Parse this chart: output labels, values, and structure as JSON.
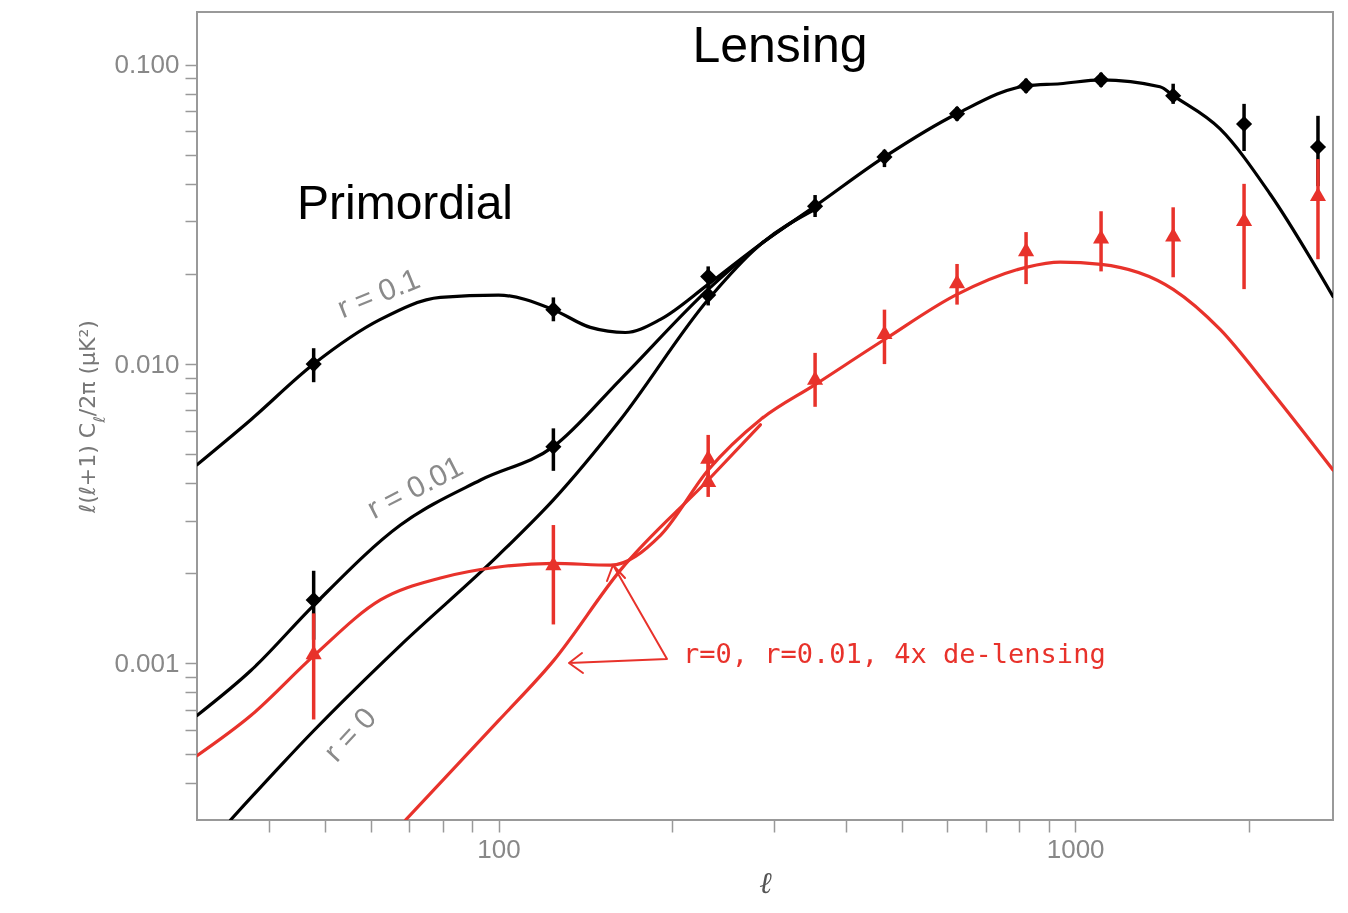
{
  "chart_data": {
    "type": "line",
    "xlabel": "ℓ",
    "ylabel": "ℓ(ℓ+1) C$_{ℓ}$/2π  (μK²)",
    "log": "xy",
    "grid": false,
    "xlim": [
      30,
      2800
    ],
    "ylim": [
      0.0003,
      0.15
    ],
    "xticks": [
      {
        "value": 40,
        "label": null
      },
      {
        "value": 50,
        "label": null
      },
      {
        "value": 60,
        "label": null
      },
      {
        "value": 70,
        "label": null
      },
      {
        "value": 80,
        "label": null
      },
      {
        "value": 90,
        "label": null
      },
      100,
      {
        "value": 200,
        "label": null
      },
      {
        "value": 300,
        "label": null
      },
      {
        "value": 400,
        "label": null
      },
      {
        "value": 500,
        "label": null
      },
      {
        "value": 600,
        "label": null
      },
      {
        "value": 700,
        "label": null
      },
      {
        "value": 800,
        "label": null
      },
      {
        "value": 900,
        "label": null
      },
      1000,
      {
        "value": 2000,
        "label": null
      }
    ],
    "yticks": [
      {
        "value": 0.0004,
        "label": null
      },
      {
        "value": 0.0005,
        "label": null
      },
      {
        "value": 0.0006,
        "label": null
      },
      {
        "value": 0.0007,
        "label": null
      },
      {
        "value": 0.0008,
        "label": null
      },
      {
        "value": 0.0009,
        "label": null
      },
      0.001,
      {
        "value": 0.002,
        "label": null
      },
      {
        "value": 0.003,
        "label": null
      },
      {
        "value": 0.004,
        "label": null
      },
      {
        "value": 0.005,
        "label": null
      },
      {
        "value": 0.006,
        "label": null
      },
      {
        "value": 0.007,
        "label": null
      },
      {
        "value": 0.008,
        "label": null
      },
      {
        "value": 0.009,
        "label": null
      },
      {
        "value": 0.01,
        "label": "0.010"
      },
      {
        "value": 0.02,
        "label": null
      },
      {
        "value": 0.03,
        "label": null
      },
      {
        "value": 0.04,
        "label": null
      },
      {
        "value": 0.05,
        "label": null
      },
      {
        "value": 0.06,
        "label": null
      },
      {
        "value": 0.07,
        "label": null
      },
      {
        "value": 0.08,
        "label": null
      },
      {
        "value": 0.09,
        "label": null
      },
      {
        "value": 0.1,
        "label": "0.100"
      }
    ],
    "series": [
      {
        "name": "r = 0.1",
        "color": "#000000",
        "marker": "none",
        "x": [
          30,
          37.2,
          47.8,
          62.4,
          79.3,
          100,
          124.5,
          144.3,
          166,
          190.9,
          231,
          284.5,
          354,
          467,
          624,
          822,
          942,
          1109,
          1403,
          1479,
          1784,
          2178,
          2800
        ],
        "values": [
          0.00461,
          0.00652,
          0.01,
          0.0141,
          0.0167,
          0.017,
          0.0152,
          0.01326,
          0.01275,
          0.0141,
          0.01846,
          0.02514,
          0.0337,
          0.0492,
          0.0686,
          0.085,
          0.0864,
          0.089,
          0.0844,
          0.0788,
          0.061,
          0.037,
          0.01683
        ]
      },
      {
        "name": "r = 0.01",
        "color": "#000000",
        "marker": "none",
        "x": [
          30,
          37.2,
          47.8,
          67.6,
          93.1,
          124.5,
          162.7,
          231,
          284.5,
          354
        ],
        "values": [
          0.00067,
          0.000947,
          0.001564,
          0.0029,
          0.0041,
          0.0053,
          0.00888,
          0.01777,
          0.0251,
          0.0334
        ]
      },
      {
        "name": "r = 0",
        "color": "#000000",
        "marker": "none",
        "x": [
          34.3,
          47.8,
          67.6,
          100,
          124.5,
          162.7,
          231,
          284.5,
          354
        ],
        "values": [
          0.0003,
          0.000596,
          0.00115,
          0.0023,
          0.00352,
          0.00652,
          0.01644,
          0.0251,
          0.0329
        ]
      },
      {
        "color": "#e8322b",
        "marker": "none",
        "x": [
          30,
          37.2,
          47.8,
          62.4,
          79.3,
          100,
          124.5,
          156.4,
          190.9,
          231,
          284.5,
          354,
          467,
          624,
          822,
          942,
          1109,
          1479,
          1784,
          2178,
          2800
        ],
        "values": [
          0.000492,
          0.00067,
          0.00106,
          0.00163,
          0.00193,
          0.0021,
          0.00216,
          0.00213,
          0.00268,
          0.00443,
          0.00652,
          0.00854,
          0.01208,
          0.0171,
          0.02105,
          0.0219,
          0.02154,
          0.01777,
          0.01305,
          0.00821,
          0.00443
        ]
      },
      {
        "color": "#e8322b",
        "marker": "none",
        "x": [
          69,
          100,
          124.5,
          162.7,
          231,
          284.5
        ],
        "values": [
          0.0003,
          0.000644,
          0.00102,
          0.00205,
          0.0041,
          0.00627
        ]
      },
      {
        "type": "scatter",
        "color": "#000000",
        "marker": "diamond",
        "x": [
          47.8,
          47.8,
          124.5,
          124.5,
          231,
          231,
          354,
          467,
          624,
          822,
          1109,
          1479,
          1963,
          2637
        ],
        "values": [
          0.01,
          0.00163,
          0.0152,
          0.0053,
          0.0196,
          0.017,
          0.0337,
          0.0492,
          0.0686,
          0.085,
          0.089,
          0.0788,
          0.0634,
          0.0531
        ],
        "errors": [
          [
            0.0087,
            0.0113
          ],
          [
            0.0012,
            0.00204
          ],
          [
            0.0139,
            0.0167
          ],
          [
            0.0044,
            0.0061
          ],
          [
            0.018,
            0.0212
          ],
          [
            0.0157,
            0.0183
          ],
          [
            0.031,
            0.0367
          ],
          [
            0.0455,
            0.052
          ],
          [
            0.065,
            0.0723
          ],
          [
            0.0806,
            0.0898
          ],
          [
            0.0844,
            0.094
          ],
          [
            0.074,
            0.0864
          ],
          [
            0.0515,
            0.074
          ],
          [
            0.0393,
            0.0675
          ]
        ]
      },
      {
        "type": "scatter",
        "color": "#e8322b",
        "marker": "triangle",
        "x": [
          47.8,
          124.5,
          231,
          231,
          354,
          467,
          624,
          822,
          1109,
          1479,
          1963,
          2637
        ],
        "values": [
          0.00109,
          0.00216,
          0.0049,
          0.0041,
          0.009,
          0.0128,
          0.0189,
          0.0242,
          0.0267,
          0.0271,
          0.0305,
          0.037
        ],
        "errors": [
          [
            0.00065,
            0.00147
          ],
          [
            0.00135,
            0.0029
          ],
          [
            0.0042,
            0.0058
          ],
          [
            0.0036,
            0.0047
          ],
          [
            0.0072,
            0.0109
          ],
          [
            0.01,
            0.0152
          ],
          [
            0.0158,
            0.0216
          ],
          [
            0.0185,
            0.0276
          ],
          [
            0.0204,
            0.0324
          ],
          [
            0.0195,
            0.0334
          ],
          [
            0.0178,
            0.04
          ],
          [
            0.0224,
            0.0484
          ]
        ]
      }
    ],
    "annotations": [
      "Lensing",
      "Primordial",
      "r=0, r=0.01, 4x de-lensing"
    ]
  }
}
